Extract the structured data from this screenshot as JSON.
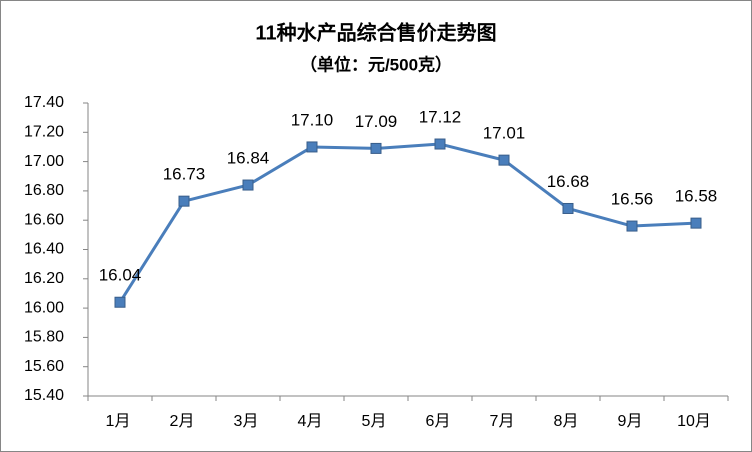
{
  "chart_data": {
    "type": "line",
    "title": "11种水产品综合售价走势图",
    "subtitle": "（单位：元/500克）",
    "categories": [
      "1月",
      "2月",
      "3月",
      "4月",
      "5月",
      "6月",
      "7月",
      "8月",
      "9月",
      "10月"
    ],
    "values": [
      16.04,
      16.73,
      16.84,
      17.1,
      17.09,
      17.12,
      17.01,
      16.68,
      16.56,
      16.58
    ],
    "value_labels": [
      "16.04",
      "16.73",
      "16.84",
      "17.10",
      "17.09",
      "17.12",
      "17.01",
      "16.68",
      "16.56",
      "16.58"
    ],
    "color": "#4a7ebb",
    "ylim": [
      15.4,
      17.4
    ],
    "yticks": [
      {
        "value": 15.4,
        "label": "15.40"
      },
      {
        "value": 15.6,
        "label": "15.60"
      },
      {
        "value": 15.8,
        "label": "15.80"
      },
      {
        "value": 16,
        "label": "16.00"
      },
      {
        "value": 16.2,
        "label": "16.20"
      },
      {
        "value": 16.4,
        "label": "16.40"
      },
      {
        "value": 16.6,
        "label": "16.60"
      },
      {
        "value": 16.8,
        "label": "16.80"
      },
      {
        "value": 17,
        "label": "17.00"
      },
      {
        "value": 17.2,
        "label": "17.20"
      },
      {
        "value": 17.4,
        "label": "17.40"
      }
    ],
    "grid": false
  }
}
